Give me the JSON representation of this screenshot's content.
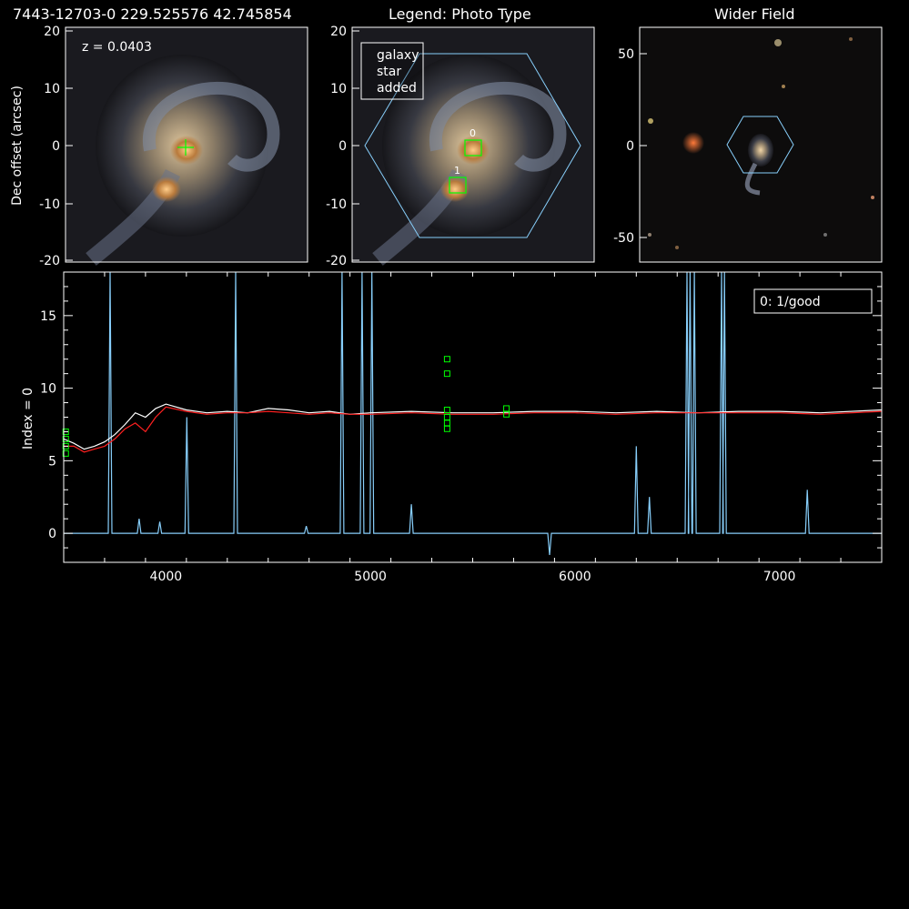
{
  "header": {
    "object_id": "7443-12703-0 229.525576 42.745854",
    "legend_title": "Legend: Photo Type",
    "wider_title": "Wider Field"
  },
  "panel_galaxy": {
    "redshift_label": "z = 0.0403",
    "ylabel": "Dec offset (arcsec)",
    "y_ticks": [
      "20",
      "10",
      "0",
      "-10",
      "-20"
    ]
  },
  "panel_legend": {
    "y_ticks": [
      "20",
      "10",
      "0",
      "-10",
      "-20"
    ],
    "legend_items": [
      {
        "label": "galaxy",
        "color": "#00ff00"
      },
      {
        "label": "star",
        "color": "#ff0000"
      },
      {
        "label": "added",
        "color": "#ffa500"
      }
    ],
    "markers": [
      "0",
      "1"
    ]
  },
  "panel_wide": {
    "y_ticks": [
      "50",
      "0",
      "-50"
    ]
  },
  "colors": {
    "hexagon": "#87cefa",
    "marker": "#00ff00",
    "spectrum": "#ffffff",
    "model": "#ff2020",
    "emission": "#87cefa"
  },
  "chart_data": {
    "type": "line",
    "ylabel": "Index = 0",
    "legend": "0: 1/good",
    "xlim": [
      3500,
      7500
    ],
    "ylim": [
      -2,
      18
    ],
    "x_ticks": [
      4000,
      5000,
      6000,
      7000
    ],
    "y_ticks": [
      0,
      5,
      10,
      15
    ],
    "series": [
      {
        "color": "#ffffff",
        "x": [
          3500,
          3550,
          3600,
          3650,
          3700,
          3750,
          3800,
          3850,
          3900,
          3950,
          4000,
          4100,
          4200,
          4300,
          4400,
          4500,
          4600,
          4700,
          4800,
          4900,
          5000,
          5200,
          5400,
          5600,
          5800,
          6000,
          6200,
          6400,
          6600,
          6800,
          7000,
          7200,
          7500
        ],
        "y": [
          6.5,
          6.2,
          5.8,
          6.0,
          6.3,
          6.8,
          7.5,
          8.3,
          8.0,
          8.6,
          8.9,
          8.5,
          8.3,
          8.4,
          8.3,
          8.6,
          8.5,
          8.3,
          8.4,
          8.2,
          8.3,
          8.4,
          8.3,
          8.3,
          8.4,
          8.4,
          8.3,
          8.4,
          8.3,
          8.4,
          8.4,
          8.3,
          8.5
        ]
      },
      {
        "color": "#ff2020",
        "x": [
          3500,
          3550,
          3600,
          3650,
          3700,
          3750,
          3800,
          3850,
          3900,
          3950,
          4000,
          4100,
          4200,
          4300,
          4400,
          4500,
          4600,
          4700,
          4800,
          4900,
          5000,
          5200,
          5400,
          5600,
          5800,
          6000,
          6200,
          6400,
          6600,
          6800,
          7000,
          7200,
          7500
        ],
        "y": [
          6.0,
          6.0,
          5.6,
          5.8,
          6.0,
          6.5,
          7.2,
          7.6,
          7.0,
          8.0,
          8.7,
          8.4,
          8.2,
          8.3,
          8.3,
          8.4,
          8.3,
          8.2,
          8.3,
          8.2,
          8.2,
          8.3,
          8.2,
          8.2,
          8.3,
          8.3,
          8.2,
          8.3,
          8.3,
          8.3,
          8.3,
          8.2,
          8.4
        ]
      },
      {
        "color": "#87cefa",
        "x": [
          3500,
          3727,
          3869,
          3970,
          4102,
          4341,
          4686,
          4861,
          4959,
          5007,
          5200,
          5876,
          6300,
          6364,
          6548,
          6563,
          6584,
          6717,
          6731,
          7136,
          7500
        ],
        "y": [
          0,
          18,
          1,
          0.8,
          8,
          18,
          0.5,
          18,
          18,
          18,
          2,
          -1.5,
          6,
          2.5,
          18,
          18,
          18,
          18,
          18,
          3,
          0
        ]
      }
    ],
    "annotations": []
  }
}
